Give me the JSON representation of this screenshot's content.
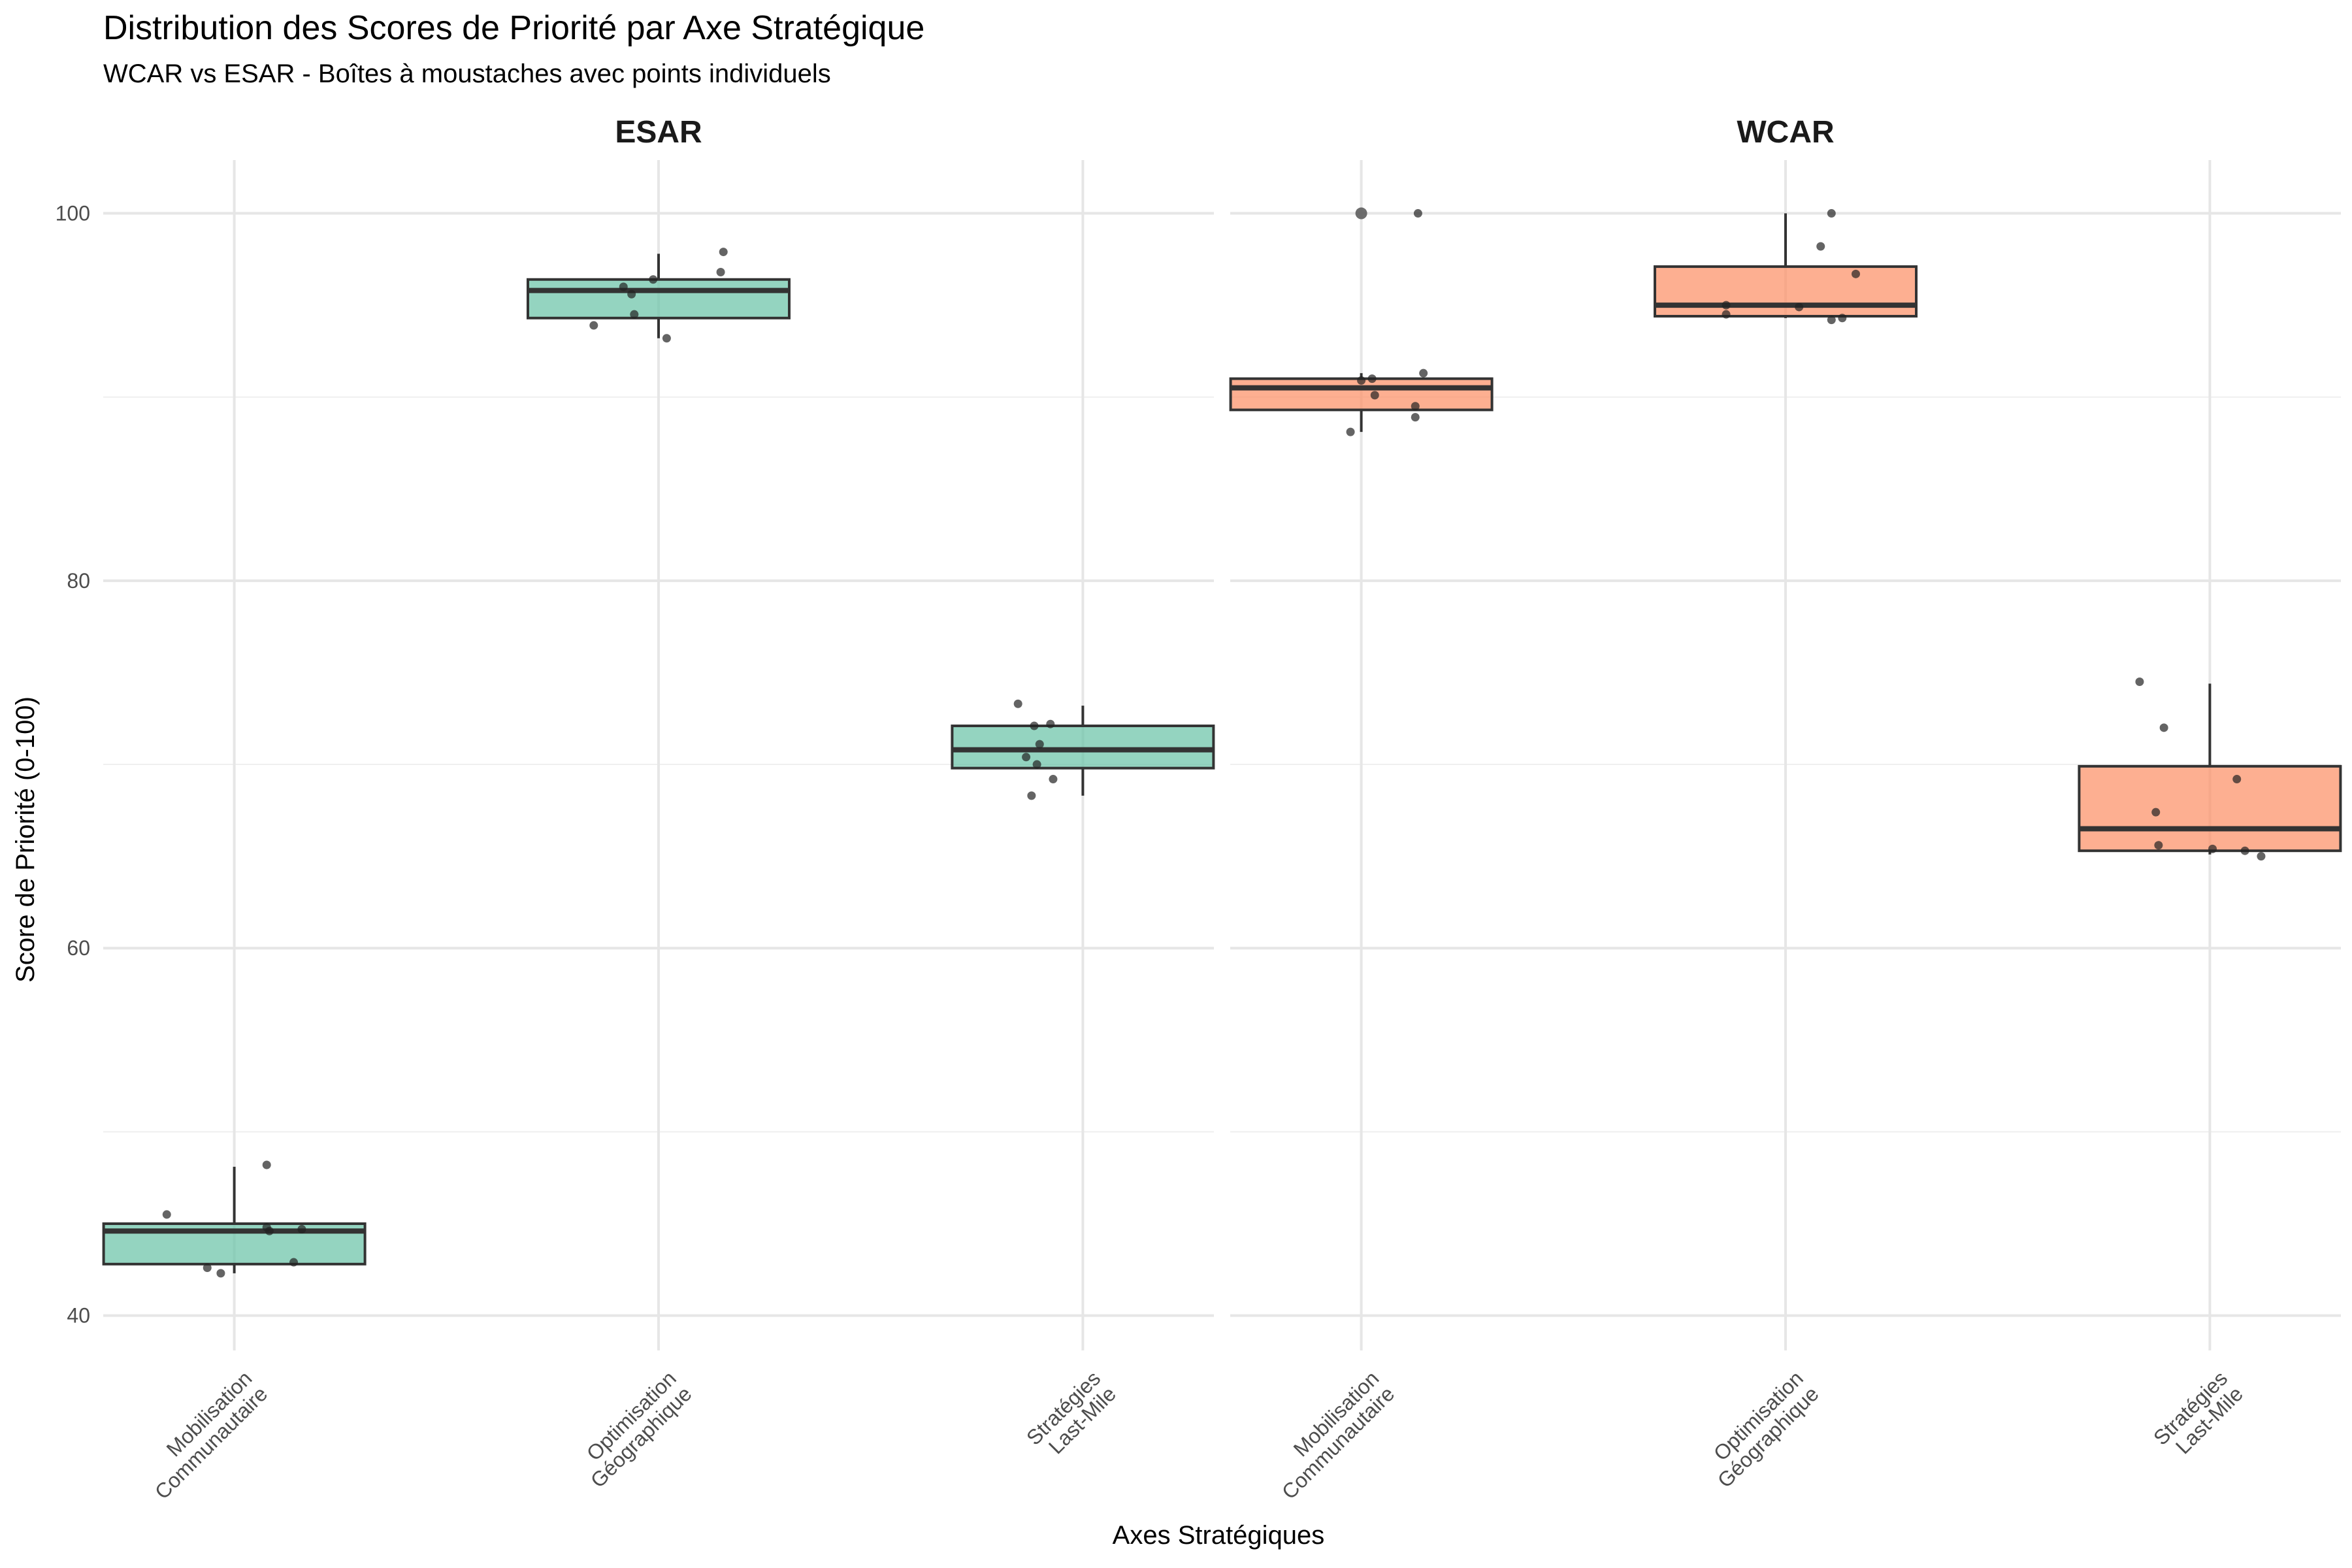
{
  "chart_data": {
    "type": "boxplot",
    "title": "Distribution des Scores de Priorité par Axe Stratégique",
    "subtitle": "WCAR vs ESAR - Boîtes à moustaches avec points individuels",
    "xlabel": "Axes Stratégiques",
    "ylabel": "Score de Priorité (0-100)",
    "ylim": [
      38.1,
      102.9
    ],
    "yticks": [
      40,
      60,
      80,
      100
    ],
    "grid": true,
    "legend": "none",
    "categories": [
      [
        "Mobilisation",
        "Communautaire"
      ],
      [
        "Optimisation",
        "Géographique"
      ],
      [
        "Stratégies",
        "Last-Mile"
      ]
    ],
    "panels": [
      {
        "name": "ESAR",
        "color": "#66c2a5",
        "boxes": [
          {
            "whisker_low": 42.3,
            "q1": 42.8,
            "median": 44.6,
            "q3": 45.0,
            "whisker_high": 48.1,
            "points": [
              [
                -0.25,
                45.5
              ],
              [
                -0.1,
                42.6
              ],
              [
                -0.05,
                42.3
              ],
              [
                0.12,
                48.2
              ],
              [
                0.12,
                44.8
              ],
              [
                0.13,
                44.6
              ],
              [
                0.22,
                42.9
              ],
              [
                0.25,
                44.7
              ]
            ]
          },
          {
            "whisker_low": 93.2,
            "q1": 94.3,
            "median": 95.8,
            "q3": 96.4,
            "whisker_high": 97.8,
            "points": [
              [
                -0.24,
                93.9
              ],
              [
                -0.13,
                96.0
              ],
              [
                -0.1,
                95.6
              ],
              [
                -0.09,
                94.5
              ],
              [
                -0.02,
                96.4
              ],
              [
                0.03,
                93.2
              ],
              [
                0.23,
                96.8
              ],
              [
                0.24,
                97.9
              ]
            ]
          },
          {
            "whisker_low": 68.3,
            "q1": 69.8,
            "median": 70.8,
            "q3": 72.1,
            "whisker_high": 73.2,
            "points": [
              [
                -0.24,
                73.3
              ],
              [
                -0.21,
                70.4
              ],
              [
                -0.18,
                72.1
              ],
              [
                -0.17,
                70.0
              ],
              [
                -0.16,
                71.1
              ],
              [
                -0.12,
                72.2
              ],
              [
                -0.11,
                69.2
              ],
              [
                -0.19,
                68.3
              ]
            ]
          }
        ]
      },
      {
        "name": "WCAR",
        "color": "#fc8d62",
        "boxes": [
          {
            "whisker_low": 88.1,
            "q1": 89.3,
            "median": 90.5,
            "q3": 91.0,
            "whisker_high": 91.3,
            "outliers": [
              100.0
            ],
            "points": [
              [
                -0.04,
                88.1
              ],
              [
                0.0,
                90.9
              ],
              [
                0.04,
                91.0
              ],
              [
                0.05,
                90.1
              ],
              [
                0.2,
                89.5
              ],
              [
                0.2,
                88.9
              ],
              [
                0.23,
                91.3
              ],
              [
                0.21,
                100.0
              ]
            ]
          },
          {
            "whisker_low": 94.3,
            "q1": 94.4,
            "median": 95.0,
            "q3": 97.1,
            "whisker_high": 100.0,
            "points": [
              [
                -0.22,
                95.0
              ],
              [
                -0.22,
                94.5
              ],
              [
                0.05,
                94.9
              ],
              [
                0.13,
                98.2
              ],
              [
                0.17,
                94.2
              ],
              [
                0.17,
                100.0
              ],
              [
                0.21,
                94.3
              ],
              [
                0.26,
                96.7
              ]
            ]
          },
          {
            "whisker_low": 65.1,
            "q1": 65.3,
            "median": 66.5,
            "q3": 69.9,
            "whisker_high": 74.4,
            "points": [
              [
                -0.26,
                74.5
              ],
              [
                -0.2,
                67.4
              ],
              [
                -0.19,
                65.6
              ],
              [
                -0.17,
                72.0
              ],
              [
                0.01,
                65.4
              ],
              [
                0.1,
                69.2
              ],
              [
                0.13,
                65.3
              ],
              [
                0.19,
                65.0
              ]
            ]
          }
        ]
      }
    ]
  }
}
